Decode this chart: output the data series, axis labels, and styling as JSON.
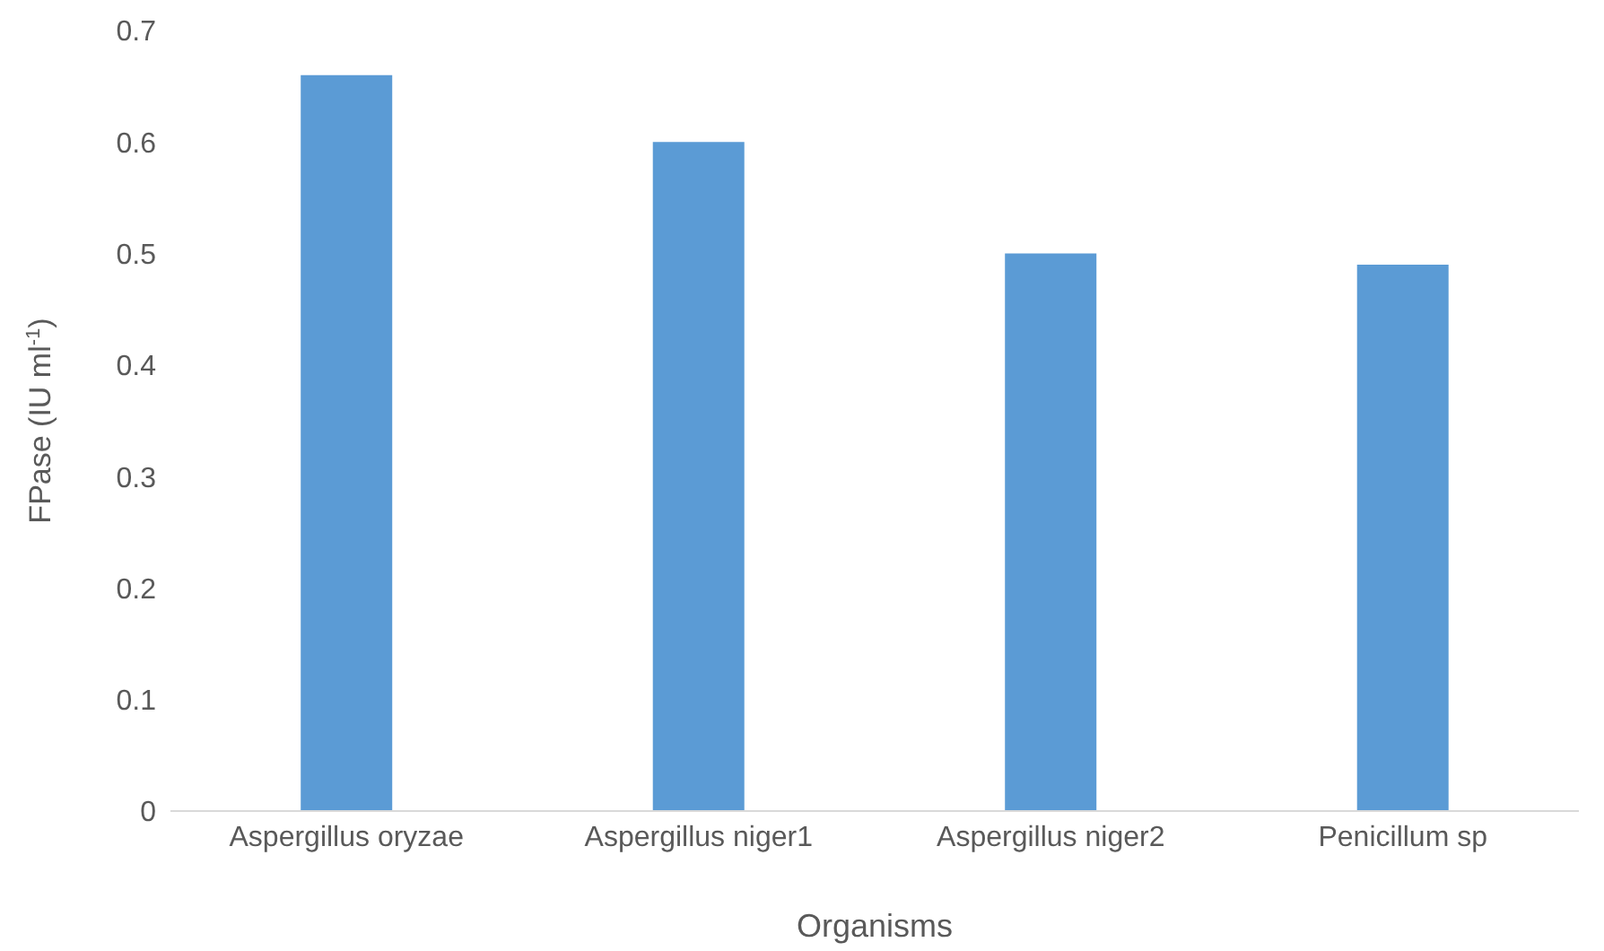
{
  "chart_data": {
    "type": "bar",
    "xlabel": "Organisms",
    "ylabel": "FPase (IU ml$^{-1}$)",
    "categories": [
      "Aspergillus oryzae",
      "Aspergillus niger1",
      "Aspergillus niger2",
      "Penicillum sp"
    ],
    "values": [
      0.66,
      0.6,
      0.5,
      0.49
    ],
    "color": "#5b9bd5",
    "ylim": [
      0,
      0.7
    ],
    "yticks": [
      0,
      0.1,
      0.2,
      0.3,
      0.4,
      0.5,
      0.6,
      0.7
    ],
    "grid": false
  }
}
